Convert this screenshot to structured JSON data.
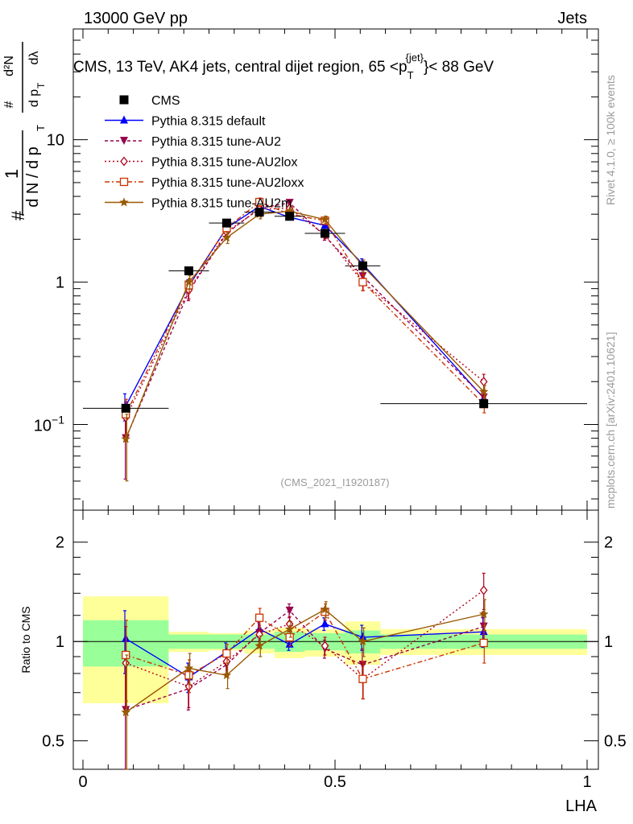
{
  "header": {
    "energy_label": "13000 GeV pp",
    "category_label": "Jets"
  },
  "side_labels": {
    "rivet": "Rivet 4.1.0, ≥ 100k events",
    "mcplots": "mcplots.cern.ch [arXiv:2401.10621]"
  },
  "chart_data": {
    "type": "line",
    "title": "CMS, 13 TeV, AK4 jets, central dijet region, 65 <p_T^{jet}< 88 GeV",
    "title_parts": {
      "prefix": "CMS, 13 TeV, AK4 jets, central dijet region, 65 <p",
      "sub": "T",
      "sup": "{jet}",
      "suffix": "}< 88 GeV"
    },
    "watermark": "(CMS_2021_I1920187)",
    "xlabel": "LHA",
    "ylabel": "1/(dN/dp_T) d^2N/(dp_T dλ)",
    "ylabel_parts": {
      "one": "1",
      "hash": "#",
      "den1": "d N / d p",
      "sub": "T",
      "num2": "d²N",
      "den2": "d p",
      "den2_tail": "dλ"
    },
    "xlim": [
      0,
      1
    ],
    "ylim": [
      0.025,
      60
    ],
    "yscale": "log",
    "x_ticks": [
      "0",
      "0.5",
      "1"
    ],
    "y_ticks": [
      {
        "value": 0.1,
        "base": "10",
        "exp": "−1"
      },
      {
        "value": 1,
        "label": "1"
      },
      {
        "value": 10,
        "label": "10"
      }
    ],
    "bins": [
      [
        0.0,
        0.17
      ],
      [
        0.17,
        0.25
      ],
      [
        0.25,
        0.32
      ],
      [
        0.32,
        0.38
      ],
      [
        0.38,
        0.44
      ],
      [
        0.44,
        0.52
      ],
      [
        0.52,
        0.59
      ],
      [
        0.59,
        1.0
      ]
    ],
    "x": [
      0.085,
      0.21,
      0.285,
      0.35,
      0.41,
      0.48,
      0.555,
      0.795
    ],
    "data": {
      "name": "CMS",
      "values": [
        0.13,
        1.2,
        2.6,
        3.1,
        2.9,
        2.2,
        1.3,
        0.14
      ],
      "ratio_band_inner": [
        [
          0.84,
          1.16
        ],
        [
          0.95,
          1.05
        ],
        [
          0.95,
          1.05
        ],
        [
          0.95,
          1.05
        ],
        [
          0.93,
          1.07
        ],
        [
          0.94,
          1.06
        ],
        [
          0.92,
          1.08
        ],
        [
          0.95,
          1.05
        ]
      ],
      "ratio_band_outer": [
        [
          0.65,
          1.37
        ],
        [
          0.93,
          1.07
        ],
        [
          0.94,
          1.06
        ],
        [
          0.92,
          1.08
        ],
        [
          0.89,
          1.1
        ],
        [
          0.9,
          1.09
        ],
        [
          0.85,
          1.15
        ],
        [
          0.91,
          1.09
        ]
      ]
    },
    "series": [
      {
        "name": "Pythia 8.315 default",
        "color": "#0000ff",
        "marker": "triangle-up",
        "dash": "",
        "values": [
          0.135,
          0.94,
          2.4,
          3.4,
          2.85,
          2.5,
          1.34,
          0.153
        ],
        "ratio": [
          1.02,
          0.78,
          0.93,
          1.09,
          0.98,
          1.13,
          1.03,
          1.07
        ],
        "ratio_err": [
          0.22,
          0.08,
          0.06,
          0.06,
          0.04,
          0.05,
          0.09,
          0.11
        ]
      },
      {
        "name": "Pythia 8.315 tune-AU2",
        "color": "#99004d",
        "marker": "triangle-down",
        "dash": "4,3",
        "values": [
          0.08,
          0.86,
          2.2,
          3.3,
          3.6,
          2.1,
          1.1,
          0.155
        ],
        "ratio": [
          0.62,
          0.72,
          0.85,
          1.06,
          1.24,
          0.95,
          0.85,
          1.11
        ],
        "ratio_err": [
          0.3,
          0.1,
          0.07,
          0.08,
          0.06,
          0.06,
          0.1,
          0.12
        ]
      },
      {
        "name": "Pythia 8.315 tune-AU2lox",
        "color": "#b3001a",
        "marker": "diamond-open",
        "dash": "2,3",
        "values": [
          0.112,
          0.88,
          2.25,
          3.25,
          3.3,
          2.15,
          1.0,
          0.2
        ],
        "ratio": [
          0.86,
          0.73,
          0.87,
          1.05,
          1.13,
          0.97,
          0.77,
          1.43
        ],
        "ratio_err": [
          0.25,
          0.1,
          0.07,
          0.07,
          0.06,
          0.06,
          0.1,
          0.18
        ]
      },
      {
        "name": "Pythia 8.315 tune-AU2loxx",
        "color": "#cc3300",
        "marker": "square-open",
        "dash": "6,3,2,3",
        "values": [
          0.118,
          0.95,
          2.4,
          3.65,
          3.0,
          2.7,
          1.0,
          0.139
        ],
        "ratio": [
          0.91,
          0.79,
          0.92,
          1.18,
          1.03,
          1.23,
          0.77,
          0.99
        ],
        "ratio_err": [
          0.25,
          0.09,
          0.06,
          0.08,
          0.06,
          0.07,
          0.1,
          0.13
        ]
      },
      {
        "name": "Pythia 8.315 tune-AU2m",
        "color": "#995900",
        "marker": "star",
        "dash": "",
        "values": [
          0.079,
          1.0,
          2.05,
          3.0,
          3.15,
          2.75,
          1.3,
          0.17
        ],
        "ratio": [
          0.61,
          0.83,
          0.79,
          0.97,
          1.09,
          1.25,
          1.0,
          1.21
        ],
        "ratio_err": [
          0.3,
          0.09,
          0.07,
          0.07,
          0.06,
          0.07,
          0.1,
          0.13
        ]
      }
    ],
    "ratio_panel": {
      "ylabel": "Ratio to CMS",
      "ylim": [
        0.41,
        2.5
      ],
      "yscale": "log",
      "ticks": [
        {
          "value": 0.5,
          "label": "0.5"
        },
        {
          "value": 1,
          "label": "1"
        },
        {
          "value": 2,
          "label": "2"
        }
      ]
    }
  }
}
